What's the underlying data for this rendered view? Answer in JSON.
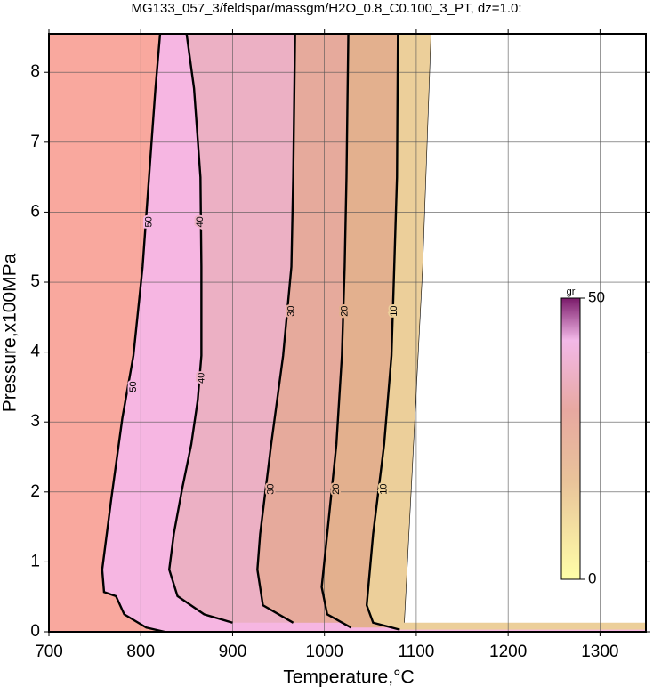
{
  "chart_data": {
    "type": "contour",
    "title": "MG133_057_3/feldspar/massgm/H2O_0.8_C0.100_3_PT, dz=1.0:",
    "x_label": "Temperature,°C",
    "y_label": "Pressure,x100MPa",
    "xlim": [
      700,
      1350
    ],
    "ylim": [
      0,
      8.55
    ],
    "xticks": [
      700,
      800,
      900,
      1000,
      1100,
      1200,
      1300
    ],
    "yticks": [
      0,
      1,
      2,
      3,
      4,
      5,
      6,
      7,
      8
    ],
    "grid": true,
    "background": "#f9a89e",
    "contours": [
      {
        "level": 50,
        "fill": "#f6b6e2",
        "x": [
          821,
          816,
          809,
          802,
          792,
          780,
          768,
          758,
          760,
          773,
          782,
          806,
          826
        ],
        "y": [
          8.54,
          7.77,
          6.5,
          5.22,
          3.95,
          3.06,
          1.91,
          0.89,
          0.57,
          0.51,
          0.25,
          0.06,
          0
        ]
      },
      {
        "level": 40,
        "fill": "#ecb0c4",
        "x": [
          850,
          858,
          865,
          866,
          866,
          862,
          855,
          845,
          836,
          831,
          840,
          869,
          900
        ],
        "y": [
          8.54,
          7.77,
          6.5,
          5.22,
          3.95,
          3.31,
          2.68,
          2.04,
          1.4,
          0.89,
          0.51,
          0.25,
          0.13
        ]
      },
      {
        "level": 30,
        "fill": "#e6aa9c",
        "x": [
          968,
          966,
          964,
          955,
          942,
          930,
          927,
          933,
          966
        ],
        "y": [
          8.54,
          6.5,
          5.22,
          3.95,
          2.68,
          1.4,
          0.89,
          0.38,
          0.13
        ]
      },
      {
        "level": 20,
        "fill": "#e3b08e",
        "x": [
          1026,
          1024,
          1022,
          1019,
          1013,
          1003,
          997,
          1003,
          1029
        ],
        "y": [
          8.54,
          6.5,
          5.22,
          3.95,
          2.68,
          1.4,
          0.64,
          0.25,
          0.06
        ]
      },
      {
        "level": 10,
        "fill": "#eccf9a",
        "x": [
          1080,
          1079,
          1076,
          1073,
          1065,
          1053,
          1046,
          1053,
          1082
        ],
        "y": [
          8.54,
          6.5,
          5.22,
          3.95,
          2.68,
          1.4,
          0.38,
          0.13,
          0.03
        ]
      },
      {
        "level": 0,
        "fill": "#ffffff",
        "x": [
          1116,
          1107,
          1092,
          1087
        ],
        "y": [
          8.54,
          5.22,
          1.4,
          0.13
        ]
      }
    ],
    "colorbar": {
      "label": "gr",
      "lim": [
        0,
        50
      ],
      "ticks": [
        0,
        50
      ]
    }
  }
}
